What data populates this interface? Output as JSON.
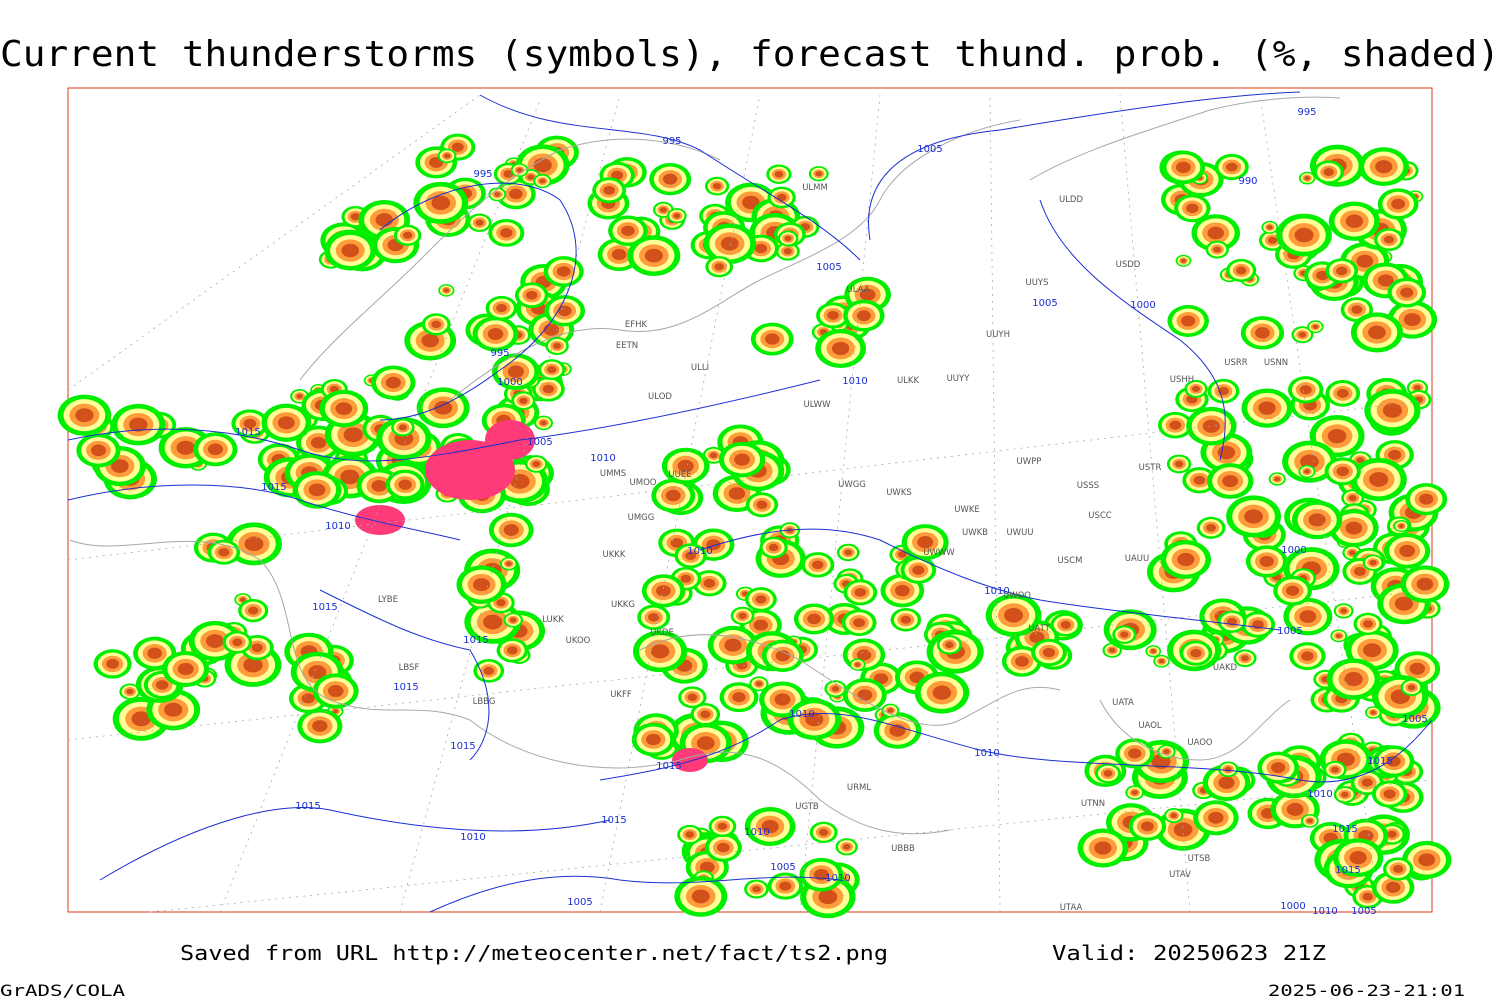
{
  "title": "Current thunderstorms (symbols), forecast thund. prob. (%, shaded)",
  "footer": {
    "source": "Saved from URL http://meteocenter.net/fact/ts2.png",
    "valid": "Valid: 20250623 21Z",
    "software": "GrADS/COLA",
    "timestamp": "2025-06-23-21:01"
  },
  "isobar_labels": [
    995,
    995,
    995,
    1005,
    990,
    1005,
    1005,
    1000,
    995,
    1000,
    1010,
    1015,
    1005,
    1010,
    1015,
    1010,
    1010,
    1000,
    1010,
    1015,
    1015,
    1005,
    1015,
    1010,
    1005,
    1015,
    1010,
    1015,
    1015,
    1010,
    1015,
    1015,
    1015,
    1010,
    1010,
    1005,
    1015,
    1010,
    1005,
    1000,
    1010,
    1005
  ],
  "station_labels": [
    "ULMM",
    "ULDD",
    "USDD",
    "ULAA",
    "UUYS",
    "EFHK",
    "EETN",
    "UUYH",
    "ULLI",
    "USHH",
    "USRR",
    "USNN",
    "ULKK",
    "UUYY",
    "ULOD",
    "ULWW",
    "UMMS",
    "UUEE",
    "UMOO",
    "UWGG",
    "UWKS",
    "USSS",
    "USTR",
    "UWPP",
    "UWKE",
    "USCC",
    "UMGG",
    "UWKB",
    "UWUU",
    "UKKK",
    "UWWW",
    "USCM",
    "UAUU",
    "UWOO",
    "UKKG",
    "LUKK",
    "UKOO",
    "UKDE",
    "UATT",
    "UAKD",
    "LYBE",
    "LBSF",
    "LBBG",
    "UKFF",
    "UATA",
    "UAOL",
    "UAOO",
    "UGTB",
    "URML",
    "UTNN",
    "UBBB",
    "UTSB",
    "UTAV",
    "UTAA"
  ]
}
